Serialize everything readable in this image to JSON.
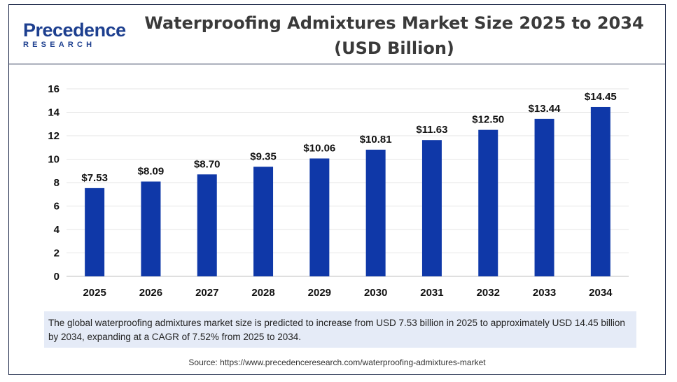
{
  "header": {
    "logo_main": "Precedence",
    "logo_sub": "RESEARCH",
    "title": "Waterproofing Admixtures Market Size 2025 to 2034 (USD Billion)"
  },
  "summary": "The global waterproofing admixtures market size is predicted to increase from USD 7.53 billion in 2025 to approximately USD 14.45 billion by 2034, expanding at a CAGR of 7.52% from 2025 to 2034.",
  "source": "Source: https://www.precedenceresearch.com/waterproofing-admixtures-market",
  "colors": {
    "bar": "#0f38a8",
    "brand": "#1d3f8f",
    "axis": "#bfbfbf"
  },
  "chart_data": {
    "type": "bar",
    "title": "Waterproofing Admixtures Market Size 2025 to 2034 (USD Billion)",
    "categories": [
      "2025",
      "2026",
      "2027",
      "2028",
      "2029",
      "2030",
      "2031",
      "2032",
      "2033",
      "2034"
    ],
    "values": [
      7.53,
      8.09,
      8.7,
      9.35,
      10.06,
      10.81,
      11.63,
      12.5,
      13.44,
      14.45
    ],
    "data_labels": [
      "$7.53",
      "$8.09",
      "$8.70",
      "$9.35",
      "$10.06",
      "$10.81",
      "$11.63",
      "$12.50",
      "$13.44",
      "$14.45"
    ],
    "ylim": [
      0,
      16
    ],
    "yticks": [
      "0",
      "2",
      "4",
      "6",
      "8",
      "10",
      "12",
      "14",
      "16"
    ],
    "grid": true,
    "legend": "none"
  }
}
